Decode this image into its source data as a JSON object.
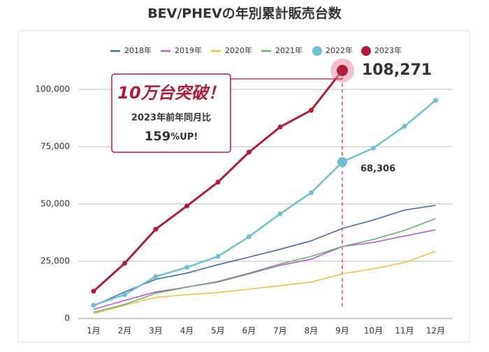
{
  "chart_data": {
    "type": "line",
    "title": "BEV/PHEVの年別累計販売台数",
    "categories": [
      "1月",
      "2月",
      "3月",
      "4月",
      "5月",
      "6月",
      "7月",
      "8月",
      "9月",
      "10月",
      "11月",
      "12月"
    ],
    "ylim": [
      0,
      100000
    ],
    "yticks": [
      0,
      {
        "value": 25000,
        "label": "25,000"
      },
      {
        "value": 50000,
        "label": "50,000"
      },
      {
        "value": 75000,
        "label": "75,000"
      },
      {
        "value": 100000,
        "label": "100,000"
      }
    ],
    "grid": true,
    "legend": "top",
    "series": [
      {
        "name": "2018年",
        "color": "#3d6fa8",
        "marker": false,
        "values": [
          5500,
          11600,
          17100,
          19800,
          23500,
          26800,
          30200,
          33900,
          39300,
          43000,
          47300,
          49400
        ]
      },
      {
        "name": "2019年",
        "color": "#b65dc9",
        "marker": false,
        "values": [
          4000,
          7900,
          11600,
          13700,
          15900,
          19500,
          23200,
          25900,
          31400,
          33200,
          36000,
          38700
        ]
      },
      {
        "name": "2020年",
        "color": "#f0c040",
        "marker": false,
        "values": [
          2100,
          5800,
          9200,
          10400,
          11300,
          12800,
          14300,
          15900,
          19500,
          21700,
          24400,
          29300
        ]
      },
      {
        "name": "2021年",
        "color": "#6aaf6a",
        "marker": false,
        "values": [
          2700,
          6100,
          11000,
          13700,
          16200,
          19800,
          23800,
          27100,
          31400,
          34500,
          38400,
          43600
        ]
      },
      {
        "name": "2022年",
        "color": "#6cc0cf",
        "marker": true,
        "values": [
          5800,
          10400,
          18300,
          22300,
          27100,
          35700,
          45700,
          54900,
          68306,
          74400,
          83900,
          95200
        ],
        "value_labels": [
          null,
          null,
          null,
          null,
          null,
          null,
          null,
          null,
          "68,306",
          null,
          null,
          null
        ]
      },
      {
        "name": "2023年",
        "color": "#b01c3a",
        "marker": true,
        "values": [
          11900,
          24100,
          39000,
          49100,
          59500,
          72600,
          83600,
          90900,
          108271,
          null,
          null,
          null
        ],
        "value_labels": [
          null,
          null,
          null,
          null,
          null,
          null,
          null,
          null,
          "108,271",
          null,
          null,
          null
        ]
      }
    ],
    "annotations": [
      "10万台突破！",
      "2023年前年同月比"
    ],
    "badge": {
      "number": "159",
      "suffix": "%UP!"
    }
  }
}
